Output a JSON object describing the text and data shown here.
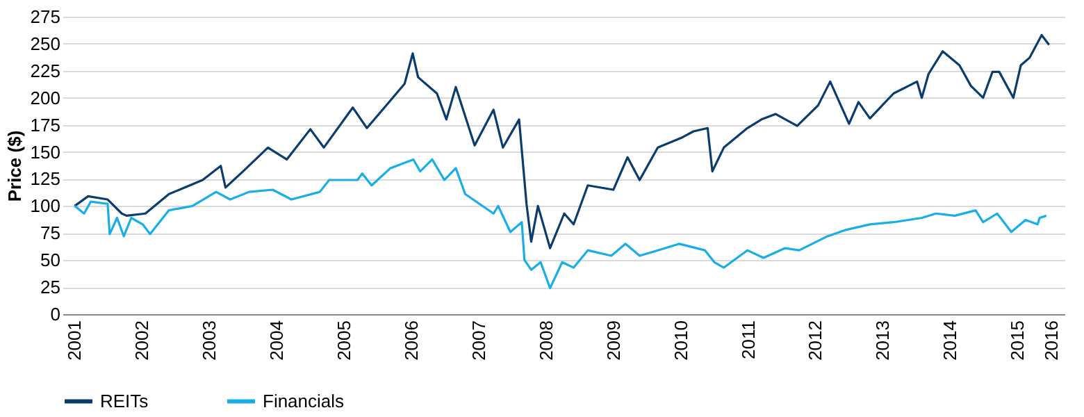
{
  "chart_data": {
    "type": "line",
    "ylabel": "Price ($)",
    "xlim": [
      2000.82,
      2015.7
    ],
    "ylim": [
      0,
      275
    ],
    "xticks": [
      {
        "value": 2001,
        "label": "2001"
      },
      {
        "value": 2002,
        "label": "2002"
      },
      {
        "value": 2003,
        "label": "2003"
      },
      {
        "value": 2004,
        "label": "2004"
      },
      {
        "value": 2005,
        "label": "2005"
      },
      {
        "value": 2006,
        "label": "2006"
      },
      {
        "value": 2007,
        "label": "2007"
      },
      {
        "value": 2008,
        "label": "2008"
      },
      {
        "value": 2009,
        "label": "2009"
      },
      {
        "value": 2010,
        "label": "2010"
      },
      {
        "value": 2011,
        "label": "2011"
      },
      {
        "value": 2012,
        "label": "2012"
      },
      {
        "value": 2013,
        "label": "2013"
      },
      {
        "value": 2014,
        "label": "2014"
      },
      {
        "value": 2015,
        "label": "2015"
      },
      {
        "value": 2015.5,
        "label": "2016"
      }
    ],
    "yticks": [
      0,
      25,
      50,
      75,
      100,
      125,
      150,
      175,
      200,
      225,
      250,
      275
    ],
    "grid": "y",
    "legend": "bottom",
    "series": [
      {
        "name": "REITs",
        "color": "#0b3c6e",
        "x": [
          2001,
          2001.2,
          2001.49,
          2001.7,
          2001.77,
          2002.05,
          2002.4,
          2002.9,
          2003.17,
          2003.24,
          2003.5,
          2003.87,
          2004.15,
          2004.5,
          2004.7,
          2005.13,
          2005.34,
          2005.6,
          2005.9,
          2006.02,
          2006.1,
          2006.38,
          2006.52,
          2006.66,
          2006.94,
          2007.22,
          2007.36,
          2007.6,
          2007.71,
          2007.78,
          2007.88,
          2008.06,
          2008.27,
          2008.41,
          2008.62,
          2009.0,
          2009.21,
          2009.39,
          2009.66,
          2010.01,
          2010.19,
          2010.4,
          2010.47,
          2010.64,
          2010.99,
          2011.2,
          2011.41,
          2011.73,
          2012.04,
          2012.22,
          2012.5,
          2012.64,
          2012.81,
          2013.16,
          2013.51,
          2013.58,
          2013.68,
          2013.89,
          2014.14,
          2014.31,
          2014.49,
          2014.63,
          2014.73,
          2014.94,
          2015.05,
          2015.18,
          2015.36,
          2015.47
        ],
        "values": [
          100,
          109,
          106,
          93,
          91,
          93,
          111,
          124,
          137,
          117,
          132,
          154,
          143,
          171,
          154,
          191,
          172,
          191,
          213,
          241,
          219,
          204,
          180,
          210,
          156,
          189,
          154,
          180,
          102,
          67,
          100,
          61,
          93,
          83,
          119,
          115,
          145,
          124,
          154,
          163,
          169,
          172,
          132,
          154,
          172,
          180,
          185,
          174,
          193,
          215,
          176,
          196,
          181,
          204,
          215,
          200,
          222,
          243,
          230,
          211,
          200,
          224,
          224,
          200,
          230,
          237,
          258,
          249
        ]
      },
      {
        "name": "Financials",
        "color": "#19aee8",
        "x": [
          2001,
          2001.14,
          2001.24,
          2001.49,
          2001.52,
          2001.63,
          2001.73,
          2001.84,
          2002.01,
          2002.12,
          2002.4,
          2002.75,
          2003.1,
          2003.31,
          2003.59,
          2003.94,
          2004.22,
          2004.64,
          2004.78,
          2005.2,
          2005.27,
          2005.41,
          2005.69,
          2006.03,
          2006.13,
          2006.31,
          2006.49,
          2006.66,
          2006.8,
          2007.01,
          2007.22,
          2007.29,
          2007.47,
          2007.64,
          2007.68,
          2007.78,
          2007.92,
          2008.06,
          2008.24,
          2008.41,
          2008.62,
          2008.97,
          2009.18,
          2009.39,
          2009.66,
          2009.98,
          2010.36,
          2010.5,
          2010.64,
          2010.99,
          2011.23,
          2011.55,
          2011.76,
          2012.18,
          2012.46,
          2012.81,
          2013.16,
          2013.58,
          2013.79,
          2014.07,
          2014.38,
          2014.49,
          2014.7,
          2014.91,
          2015.12,
          2015.3,
          2015.33,
          2015.43
        ],
        "values": [
          100,
          93,
          104,
          102,
          74,
          89,
          72,
          89,
          83,
          74,
          96,
          100,
          113,
          106,
          113,
          115,
          106,
          113,
          124,
          124,
          130,
          119,
          135,
          143,
          132,
          143,
          124,
          135,
          111,
          102,
          93,
          100,
          76,
          85,
          50,
          41,
          48,
          24,
          48,
          43,
          59,
          54,
          65,
          54,
          59,
          65,
          59,
          48,
          43,
          59,
          52,
          61,
          59,
          72,
          78,
          83,
          85,
          89,
          93,
          91,
          96,
          85,
          93,
          76,
          87,
          83,
          89,
          91
        ]
      }
    ]
  }
}
